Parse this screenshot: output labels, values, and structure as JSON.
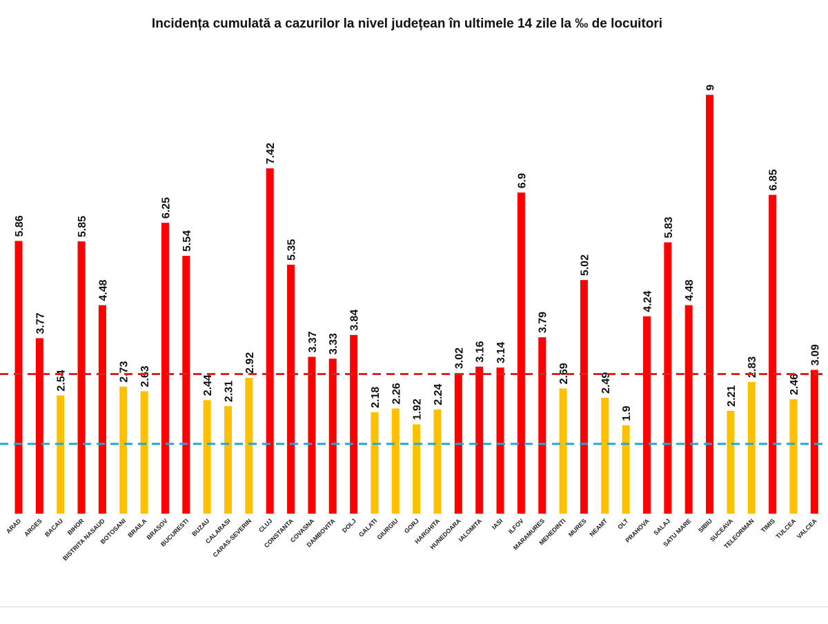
{
  "chart_data": {
    "type": "bar",
    "title": "Incidența cumulată a cazurilor la nivel județean în ultimele 14 zile la ‰ de locuitori",
    "categories": [
      "ARAD",
      "ARGES",
      "BACAU",
      "BIHOR",
      "BISTRITA NASAUD",
      "BOTOSANI",
      "BRAILA",
      "BRASOV",
      "BUCURESTI",
      "BUZAU",
      "CALARASI",
      "CARAS-SEVERIN",
      "CLUJ",
      "CONSTANTA",
      "COVASNA",
      "DAMBOVITA",
      "DOLJ",
      "GALATI",
      "GIURGIU",
      "GORJ",
      "HARGHITA",
      "HUNEDOARA",
      "IALOMITA",
      "IASI",
      "ILFOV",
      "MARAMURES",
      "MEHEDINTI",
      "MURES",
      "NEAMT",
      "OLT",
      "PRAHOVA",
      "SALAJ",
      "SATU MARE",
      "SIBIU",
      "SUCEAVA",
      "TELEORMAN",
      "TIMIS",
      "TULCEA",
      "VALCEA"
    ],
    "values": [
      5.86,
      3.77,
      2.54,
      5.85,
      4.48,
      2.73,
      2.63,
      6.25,
      5.54,
      2.44,
      2.31,
      2.92,
      7.42,
      5.35,
      3.37,
      3.33,
      3.84,
      2.18,
      2.26,
      1.92,
      2.24,
      3.02,
      3.16,
      3.14,
      6.9,
      3.79,
      2.69,
      5.02,
      2.49,
      1.9,
      4.24,
      5.83,
      4.48,
      9,
      2.21,
      2.83,
      6.85,
      2.46,
      3.09
    ],
    "colors": [
      "#ff0000",
      "#ff0000",
      "#ffc000",
      "#ff0000",
      "#ff0000",
      "#ffc000",
      "#ffc000",
      "#ff0000",
      "#ff0000",
      "#ffc000",
      "#ffc000",
      "#ffc000",
      "#ff0000",
      "#ff0000",
      "#ff0000",
      "#ff0000",
      "#ff0000",
      "#ffc000",
      "#ffc000",
      "#ffc000",
      "#ffc000",
      "#ff0000",
      "#ff0000",
      "#ff0000",
      "#ff0000",
      "#ff0000",
      "#ffc000",
      "#ff0000",
      "#ffc000",
      "#ffc000",
      "#ff0000",
      "#ff0000",
      "#ff0000",
      "#ff0000",
      "#ffc000",
      "#ffc000",
      "#ff0000",
      "#ffc000",
      "#ff0000"
    ],
    "ylim": [
      0,
      10
    ],
    "reference_lines": [
      {
        "value": 3,
        "color": "#e02020"
      },
      {
        "value": 1.5,
        "color": "#1ea8dc"
      }
    ]
  }
}
